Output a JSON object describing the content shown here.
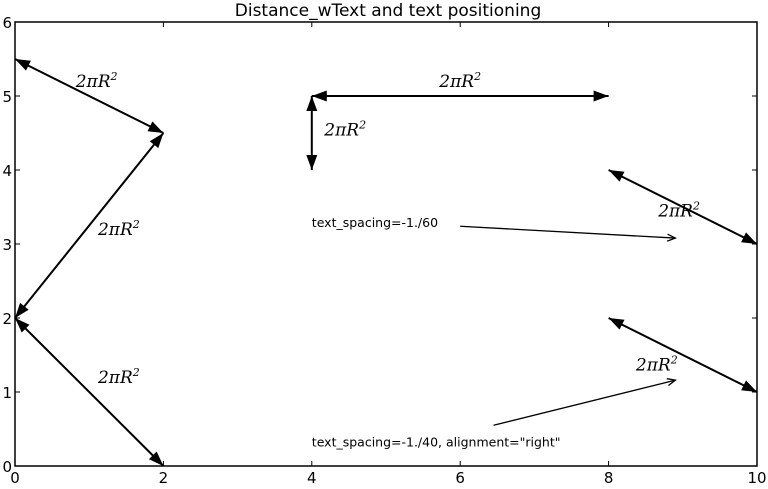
{
  "chart_data": {
    "type": "annotation",
    "title": "Distance_wText and text positioning",
    "xlabel": "",
    "ylabel": "",
    "xlim": [
      0,
      10
    ],
    "ylim": [
      0,
      6
    ],
    "xticks": [
      "0",
      "2",
      "4",
      "6",
      "8",
      "10"
    ],
    "yticks": [
      "0",
      "1",
      "2",
      "3",
      "4",
      "5",
      "6"
    ],
    "grid": false,
    "color": "#000000",
    "distance_arrows": [
      {
        "from": [
          0,
          5.5
        ],
        "to": [
          2,
          4.5
        ],
        "label": "2πR²",
        "label_at": [
          1.1,
          5.2
        ]
      },
      {
        "from": [
          2,
          4.5
        ],
        "to": [
          0,
          2
        ],
        "label": "2πR²",
        "label_at": [
          1.4,
          3.2
        ]
      },
      {
        "from": [
          0,
          2
        ],
        "to": [
          2,
          0
        ],
        "label": "2πR²",
        "label_at": [
          1.4,
          1.2
        ]
      },
      {
        "from": [
          4,
          5
        ],
        "to": [
          8,
          5
        ],
        "label": "2πR²",
        "label_at": [
          6.0,
          5.2
        ]
      },
      {
        "from": [
          4,
          5
        ],
        "to": [
          4,
          4
        ],
        "label": "2πR²",
        "label_at": [
          4.45,
          4.55
        ]
      },
      {
        "from": [
          8,
          4
        ],
        "to": [
          10,
          3
        ],
        "label": "2πR²",
        "label_at": [
          8.95,
          3.45
        ]
      },
      {
        "from": [
          8,
          2
        ],
        "to": [
          10,
          1
        ],
        "label": "2πR²",
        "label_at": [
          8.65,
          1.37
        ]
      }
    ],
    "annotations": [
      {
        "text": "text_spacing=-1./60",
        "text_at": [
          4.0,
          3.3
        ],
        "arrow_from": [
          6.0,
          3.24
        ],
        "arrow_to": [
          8.9,
          3.08
        ]
      },
      {
        "text": "text_spacing=-1./40, alignment=\"right\"",
        "text_at": [
          4.0,
          0.33
        ],
        "arrow_from": [
          6.45,
          0.55
        ],
        "arrow_to": [
          8.9,
          1.16
        ]
      }
    ]
  }
}
